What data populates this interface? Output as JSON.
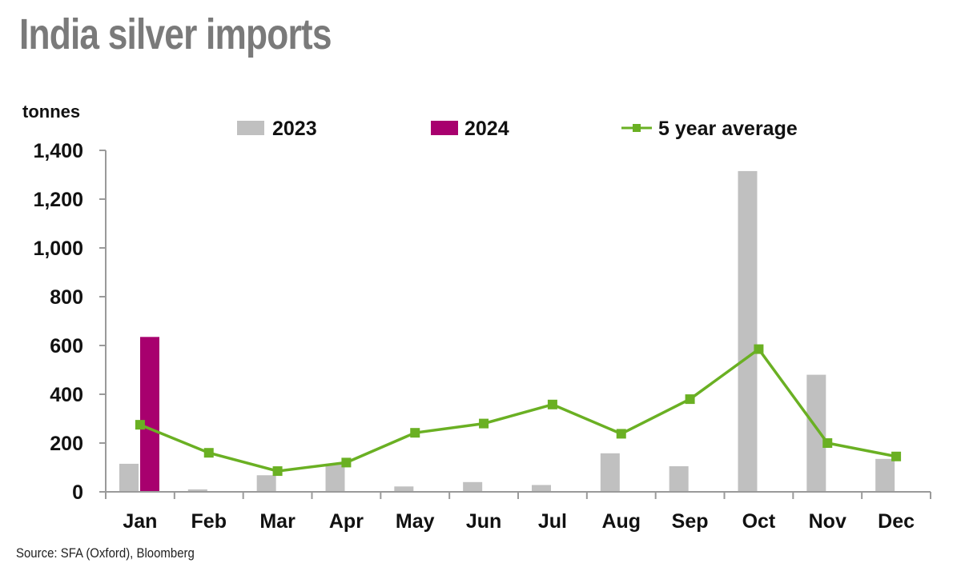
{
  "title": "India silver imports",
  "source": "Source: SFA (Oxford), Bloomberg",
  "chart_data": {
    "type": "bar",
    "title": "India silver imports",
    "ylabel": "tonnes",
    "xlabel": "",
    "categories": [
      "Jan",
      "Feb",
      "Mar",
      "Apr",
      "May",
      "Jun",
      "Jul",
      "Aug",
      "Sep",
      "Oct",
      "Nov",
      "Dec"
    ],
    "ylim": [
      0,
      1400
    ],
    "yticks": [
      0,
      200,
      400,
      600,
      800,
      1000,
      1200,
      1400
    ],
    "ytick_labels": [
      "0",
      "200",
      "400",
      "600",
      "800",
      "1,000",
      "1,200",
      "1,400"
    ],
    "grid": false,
    "legend_position": "top",
    "series": [
      {
        "name": "2023",
        "kind": "bar",
        "color": "#c0c0c0",
        "values": [
          115,
          10,
          68,
          112,
          22,
          40,
          28,
          158,
          105,
          1315,
          480,
          135
        ]
      },
      {
        "name": "2024",
        "kind": "bar",
        "color": "#a8006e",
        "values": [
          635,
          null,
          null,
          null,
          null,
          null,
          null,
          null,
          null,
          null,
          null,
          null
        ]
      },
      {
        "name": "5 year average",
        "kind": "line",
        "color": "#6ab023",
        "values": [
          275,
          160,
          85,
          120,
          242,
          280,
          358,
          238,
          380,
          585,
          200,
          145
        ]
      }
    ]
  }
}
